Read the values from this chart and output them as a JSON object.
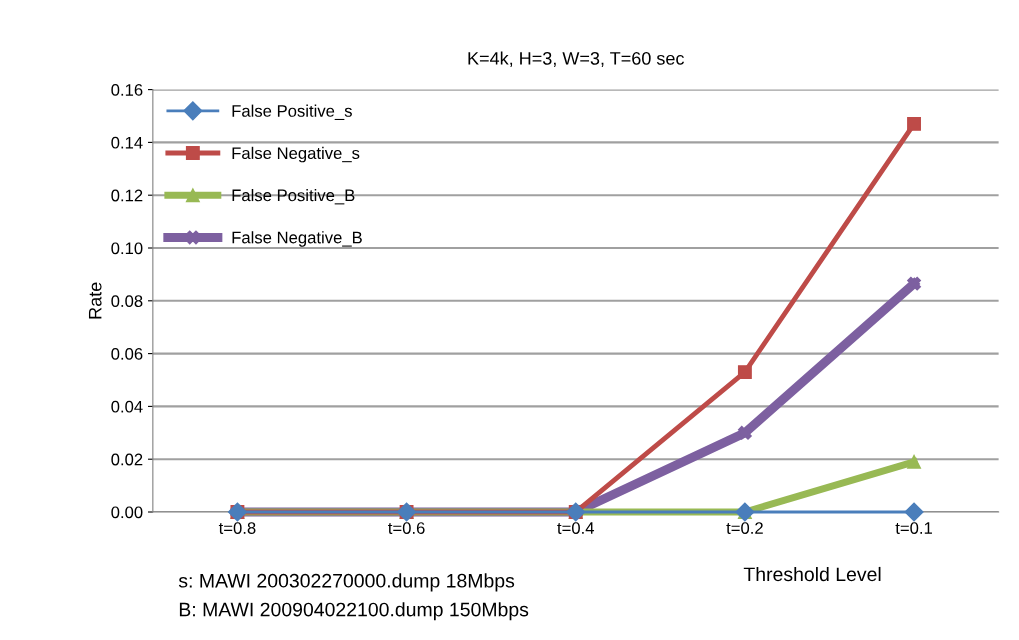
{
  "chart_data": {
    "type": "line",
    "title": "K=4k, H=3, W=3, T=60 sec",
    "xlabel": "Threshold Level",
    "ylabel": "Rate",
    "categories": [
      "t=0.8",
      "t=0.6",
      "t=0.4",
      "t=0.2",
      "t=0.1"
    ],
    "series": [
      {
        "name": "False Positive_s",
        "color": "#4a7ebb",
        "marker": "diamond",
        "values": [
          0,
          0,
          0,
          0,
          0
        ]
      },
      {
        "name": "False Negative_s",
        "color": "#be4b48",
        "marker": "square",
        "values": [
          0,
          0,
          0,
          0.053,
          0.147
        ]
      },
      {
        "name": "False Positive_B",
        "color": "#98b954",
        "marker": "triangle",
        "values": [
          0,
          0,
          0,
          0,
          0.019
        ]
      },
      {
        "name": "False Negative_B",
        "color": "#7d60a0",
        "marker": "cross",
        "values": [
          0,
          0,
          0,
          0.03,
          0.0865
        ]
      }
    ],
    "ylim": [
      0,
      0.16
    ],
    "yticks": [
      {
        "value": 0,
        "label": "0.00"
      },
      {
        "value": 0.02,
        "label": "0.02"
      },
      {
        "value": 0.04,
        "label": "0.04"
      },
      {
        "value": 0.06,
        "label": "0.06"
      },
      {
        "value": 0.08,
        "label": "0.08"
      },
      {
        "value": 0.1,
        "label": "0.10"
      },
      {
        "value": 0.12,
        "label": "0.12"
      },
      {
        "value": 0.14,
        "label": "0.14"
      },
      {
        "value": 0.16,
        "label": "0.16"
      }
    ],
    "grid": "y",
    "legend": "top left",
    "line_style": "solid",
    "annotations": [
      "s: MAWI 200302270000.dump 18Mbps",
      "B: MAWI 200904022100.dump 150Mbps"
    ]
  }
}
